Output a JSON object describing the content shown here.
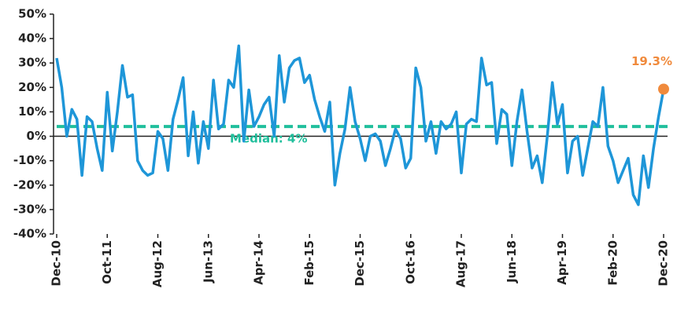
{
  "chart_data": {
    "type": "line",
    "categories": [
      "Dec-10",
      null,
      null,
      null,
      null,
      null,
      null,
      null,
      null,
      null,
      "Oct-11",
      null,
      null,
      null,
      null,
      null,
      null,
      null,
      null,
      null,
      "Aug-12",
      null,
      null,
      null,
      null,
      null,
      null,
      null,
      null,
      null,
      "Jun-13",
      null,
      null,
      null,
      null,
      null,
      null,
      null,
      null,
      null,
      "Apr-14",
      null,
      null,
      null,
      null,
      null,
      null,
      null,
      null,
      null,
      "Feb-15",
      null,
      null,
      null,
      null,
      null,
      null,
      null,
      null,
      null,
      "Dec-15",
      null,
      null,
      null,
      null,
      null,
      null,
      null,
      null,
      null,
      "Oct-16",
      null,
      null,
      null,
      null,
      null,
      null,
      null,
      null,
      null,
      "Aug-17",
      null,
      null,
      null,
      null,
      null,
      null,
      null,
      null,
      null,
      "Jun-18",
      null,
      null,
      null,
      null,
      null,
      null,
      null,
      null,
      null,
      "Apr-19",
      null,
      null,
      null,
      null,
      null,
      null,
      null,
      null,
      null,
      "Feb-20",
      null,
      null,
      null,
      null,
      null,
      null,
      null,
      null,
      null,
      "Dec-20"
    ],
    "series": [
      {
        "color": "#1e96d8",
        "values": [
          32,
          20,
          0,
          11,
          7,
          -16,
          8,
          6,
          -5,
          -14,
          18,
          -6,
          10,
          29,
          16,
          17,
          -10,
          -14,
          -16,
          -15,
          2,
          -1,
          -14,
          7,
          15,
          24,
          -8,
          10,
          -11,
          6,
          -5,
          23,
          3,
          5,
          23,
          20,
          37,
          -2,
          19,
          4,
          8,
          13,
          16,
          0,
          33,
          14,
          28,
          31,
          32,
          22,
          25,
          15,
          8,
          2,
          14,
          -20,
          -7,
          3,
          20,
          6,
          -1,
          -10,
          0,
          1,
          -2,
          -12,
          -5,
          3,
          -1,
          -13,
          -9,
          28,
          20,
          -2,
          6,
          -7,
          6,
          3,
          5,
          10,
          -15,
          5,
          7,
          6,
          32,
          21,
          22,
          -3,
          11,
          9,
          -12,
          6,
          19,
          2,
          -13,
          -8,
          -19,
          0,
          22,
          5,
          13,
          -15,
          -2,
          0,
          -16,
          -5,
          6,
          4,
          20,
          -4,
          -10,
          -19,
          -14,
          -9,
          -24,
          -28,
          -8,
          -21,
          -5,
          8,
          19.3
        ],
        "value_labels": [
          null,
          null,
          null,
          null,
          null,
          null,
          null,
          null,
          null,
          null,
          null,
          null,
          null,
          null,
          null,
          null,
          null,
          null,
          null,
          null,
          null,
          null,
          null,
          null,
          null,
          null,
          null,
          null,
          null,
          null,
          null,
          null,
          null,
          null,
          null,
          null,
          null,
          null,
          null,
          null,
          null,
          null,
          null,
          null,
          null,
          null,
          null,
          null,
          null,
          null,
          null,
          null,
          null,
          null,
          null,
          null,
          null,
          null,
          null,
          null,
          null,
          null,
          null,
          null,
          null,
          null,
          null,
          null,
          null,
          null,
          null,
          null,
          null,
          null,
          null,
          null,
          null,
          null,
          null,
          null,
          null,
          null,
          null,
          null,
          null,
          null,
          null,
          null,
          null,
          null,
          null,
          null,
          null,
          null,
          null,
          null,
          null,
          null,
          null,
          null,
          null,
          null,
          null,
          null,
          null,
          null,
          null,
          null,
          null,
          null,
          null,
          null,
          null,
          null,
          null,
          null,
          null,
          null,
          null,
          null,
          "19.3%"
        ],
        "label_color": "#f08a3c"
      }
    ],
    "median": {
      "value": 4,
      "label": "Median: 4%",
      "color": "#20bf9c"
    },
    "ylim": [
      -40,
      50
    ],
    "yticks": [
      {
        "value": -40,
        "label": "-40%"
      },
      {
        "value": -30,
        "label": "-30%"
      },
      {
        "value": -20,
        "label": "-20%"
      },
      {
        "value": -10,
        "label": "-10%"
      },
      {
        "value": 0,
        "label": "0%"
      },
      {
        "value": 10,
        "label": "10%"
      },
      {
        "value": 20,
        "label": "20%"
      },
      {
        "value": 30,
        "label": "30%"
      },
      {
        "value": 40,
        "label": "40%"
      },
      {
        "value": 50,
        "label": "50%"
      }
    ]
  }
}
